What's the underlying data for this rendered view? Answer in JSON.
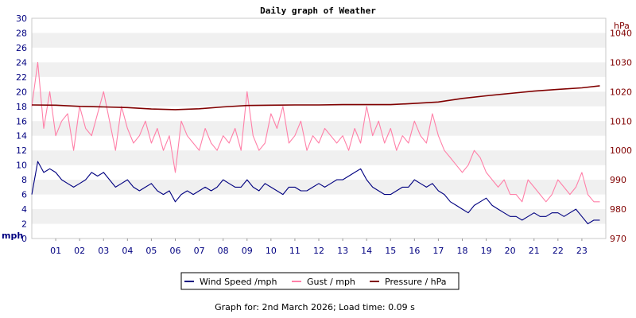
{
  "chart_data": {
    "type": "line",
    "title": "Daily graph of Weather",
    "left_axis": {
      "unit": "mph",
      "ylim": [
        0,
        30
      ],
      "ticks": [
        "0",
        "2",
        "4",
        "6",
        "8",
        "10",
        "12",
        "14",
        "16",
        "18",
        "20",
        "22",
        "24",
        "26",
        "28",
        "30"
      ]
    },
    "right_axis": {
      "unit": "hPa",
      "ylim": [
        970,
        1045
      ],
      "ticks": [
        "970",
        "980",
        "990",
        "1000",
        "1010",
        "1020",
        "1030",
        "1040"
      ]
    },
    "x_ticks": [
      "01",
      "02",
      "03",
      "04",
      "05",
      "06",
      "07",
      "08",
      "09",
      "10",
      "11",
      "12",
      "13",
      "14",
      "15",
      "16",
      "17",
      "18",
      "19",
      "20",
      "21",
      "22",
      "23"
    ],
    "x_range_hours": [
      0,
      24
    ],
    "grid": "horizontal bands",
    "legend_placement": "bottom-center",
    "legend": [
      "Wind Speed /mph",
      "Gust / mph",
      "Pressure / hPa"
    ],
    "footer": "Graph for: 2nd March 2026; Load time: 0.09 s",
    "colors": {
      "wind": "#000080",
      "gust": "#ff80a8",
      "pressure": "#800000",
      "band": "#f0f0f0",
      "left_axis_text": "#000080",
      "right_axis_text": "#800000"
    },
    "series": [
      {
        "name": "Wind Speed /mph",
        "axis": "left",
        "x": [
          0,
          0.25,
          0.5,
          0.75,
          1,
          1.25,
          1.5,
          1.75,
          2,
          2.25,
          2.5,
          2.75,
          3,
          3.25,
          3.5,
          3.75,
          4,
          4.25,
          4.5,
          4.75,
          5,
          5.25,
          5.5,
          5.75,
          6,
          6.25,
          6.5,
          6.75,
          7,
          7.25,
          7.5,
          7.75,
          8,
          8.25,
          8.5,
          8.75,
          9,
          9.25,
          9.5,
          9.75,
          10,
          10.25,
          10.5,
          10.75,
          11,
          11.25,
          11.5,
          11.75,
          12,
          12.25,
          12.5,
          12.75,
          13,
          13.25,
          13.5,
          13.75,
          14,
          14.25,
          14.5,
          14.75,
          15,
          15.25,
          15.5,
          15.75,
          16,
          16.25,
          16.5,
          16.75,
          17,
          17.25,
          17.5,
          17.75,
          18,
          18.25,
          18.5,
          18.75,
          19,
          19.25,
          19.5,
          19.75,
          20,
          20.25,
          20.5,
          20.75,
          21,
          21.25,
          21.5,
          21.75,
          22,
          22.25,
          22.5,
          22.75,
          23,
          23.25,
          23.5,
          23.75
        ],
        "values": [
          6,
          10.5,
          9,
          9.5,
          9,
          8,
          7.5,
          7,
          7.5,
          8,
          9,
          8.5,
          9,
          8,
          7,
          7.5,
          8,
          7,
          6.5,
          7,
          7.5,
          6.5,
          6,
          6.5,
          5,
          6,
          6.5,
          6,
          6.5,
          7,
          6.5,
          7,
          8,
          7.5,
          7,
          7,
          8,
          7,
          6.5,
          7.5,
          7,
          6.5,
          6,
          7,
          7,
          6.5,
          6.5,
          7,
          7.5,
          7,
          7.5,
          8,
          8,
          8.5,
          9,
          9.5,
          8,
          7,
          6.5,
          6,
          6,
          6.5,
          7,
          7,
          8,
          7.5,
          7,
          7.5,
          6.5,
          6,
          5,
          4.5,
          4,
          3.5,
          4.5,
          5,
          5.5,
          4.5,
          4,
          3.5,
          3,
          3,
          2.5,
          3,
          3.5,
          3,
          3,
          3.5,
          3.5,
          3,
          3.5,
          4,
          3,
          2,
          2.5,
          2.5
        ]
      },
      {
        "name": "Gust / mph",
        "axis": "left",
        "x": [
          0,
          0.25,
          0.5,
          0.75,
          1,
          1.25,
          1.5,
          1.75,
          2,
          2.25,
          2.5,
          2.75,
          3,
          3.25,
          3.5,
          3.75,
          4,
          4.25,
          4.5,
          4.75,
          5,
          5.25,
          5.5,
          5.75,
          6,
          6.25,
          6.5,
          6.75,
          7,
          7.25,
          7.5,
          7.75,
          8,
          8.25,
          8.5,
          8.75,
          9,
          9.25,
          9.5,
          9.75,
          10,
          10.25,
          10.5,
          10.75,
          11,
          11.25,
          11.5,
          11.75,
          12,
          12.25,
          12.5,
          12.75,
          13,
          13.25,
          13.5,
          13.75,
          14,
          14.25,
          14.5,
          14.75,
          15,
          15.25,
          15.5,
          15.75,
          16,
          16.25,
          16.5,
          16.75,
          17,
          17.25,
          17.5,
          17.75,
          18,
          18.25,
          18.5,
          18.75,
          19,
          19.25,
          19.5,
          19.75,
          20,
          20.25,
          20.5,
          20.75,
          21,
          21.25,
          21.5,
          21.75,
          22,
          22.25,
          22.5,
          22.75,
          23,
          23.25,
          23.5,
          23.75
        ],
        "values": [
          18,
          24,
          15,
          20,
          14,
          16,
          17,
          12,
          18,
          15,
          14,
          17,
          20,
          16,
          12,
          18,
          15,
          13,
          14,
          16,
          13,
          15,
          12,
          14,
          9,
          16,
          14,
          13,
          12,
          15,
          13,
          12,
          14,
          13,
          15,
          12,
          20,
          14,
          12,
          13,
          17,
          15,
          18,
          13,
          14,
          16,
          12,
          14,
          13,
          15,
          14,
          13,
          14,
          12,
          15,
          13,
          18,
          14,
          16,
          13,
          15,
          12,
          14,
          13,
          16,
          14,
          13,
          17,
          14,
          12,
          11,
          10,
          9,
          10,
          12,
          11,
          9,
          8,
          7,
          8,
          6,
          6,
          5,
          8,
          7,
          6,
          5,
          6,
          8,
          7,
          6,
          7,
          9,
          6,
          5,
          5
        ]
      },
      {
        "name": "Pressure / hPa",
        "axis": "right",
        "x": [
          0,
          1,
          2,
          3,
          4,
          5,
          6,
          7,
          8,
          9,
          10,
          11,
          12,
          13,
          14,
          15,
          16,
          17,
          18,
          19,
          20,
          21,
          22,
          23,
          23.75
        ],
        "values": [
          1015.5,
          1015.4,
          1015,
          1014.8,
          1014.6,
          1014.1,
          1013.9,
          1014.2,
          1014.8,
          1015.3,
          1015.4,
          1015.5,
          1015.5,
          1015.6,
          1015.6,
          1015.6,
          1016,
          1016.5,
          1017.7,
          1018.6,
          1019.4,
          1020.2,
          1020.8,
          1021.3,
          1022
        ]
      }
    ]
  }
}
